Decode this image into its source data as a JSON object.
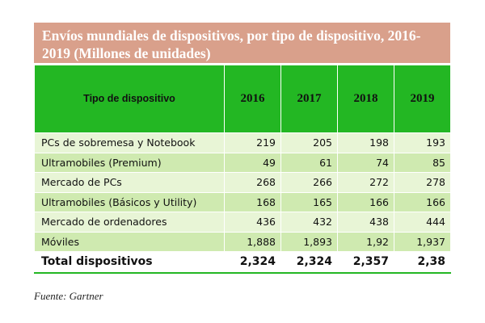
{
  "title": "Envíos mundiales de dispositivos, por tipo de dispositivo, 2016-2019 (Millones de unidades)",
  "header": {
    "category": "Tipo de dispositivo",
    "years": [
      "2016",
      "2017",
      "2018",
      "2019"
    ]
  },
  "rows": [
    {
      "label": "PCs de sobremesa y Notebook",
      "values": [
        "219",
        "205",
        "198",
        "193"
      ]
    },
    {
      "label": "Ultramobiles (Premium)",
      "values": [
        "49",
        "61",
        "74",
        "85"
      ]
    },
    {
      "label": "Mercado de PCs",
      "values": [
        "268",
        "266",
        "272",
        "278"
      ]
    },
    {
      "label": "Ultramobiles (Básicos y Utility)",
      "values": [
        "168",
        "165",
        "166",
        "166"
      ]
    },
    {
      "label": "Mercado de ordenadores",
      "values": [
        "436",
        "432",
        "438",
        "444"
      ]
    },
    {
      "label": "Móviles",
      "values": [
        "1,888",
        "1,893",
        "1,92",
        "1,937"
      ]
    }
  ],
  "total": {
    "label": "Total dispositivos",
    "values": [
      "2,324",
      "2,324",
      "2,357",
      "2,38"
    ]
  },
  "source": "Fuente: Gartner",
  "colors": {
    "title_bg": "#d9a08b",
    "header_bg": "#23b723",
    "row_light": "#e8f5d6",
    "row_dark": "#cfeab0"
  }
}
